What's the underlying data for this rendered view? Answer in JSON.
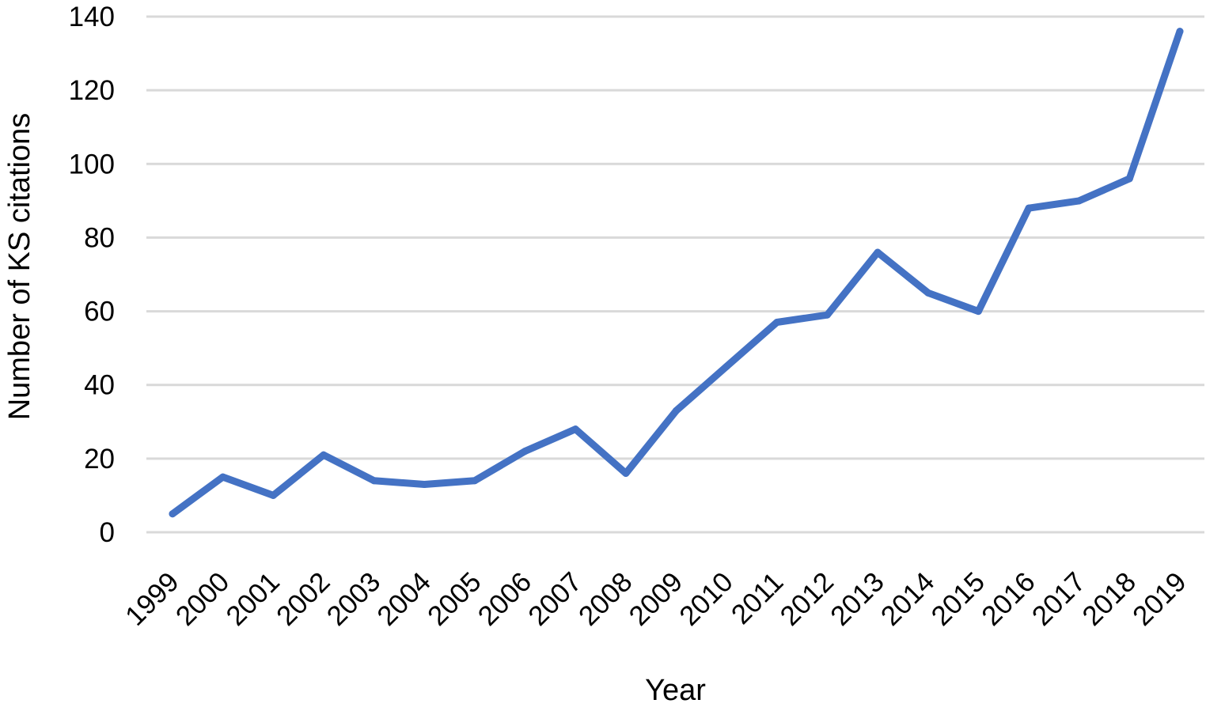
{
  "chart_data": {
    "type": "line",
    "title": "",
    "xlabel": "Year",
    "ylabel": "Number of KS citations",
    "categories": [
      "1999",
      "2000",
      "2001",
      "2002",
      "2003",
      "2004",
      "2005",
      "2006",
      "2007",
      "2008",
      "2009",
      "2010",
      "2011",
      "2012",
      "2013",
      "2014",
      "2015",
      "2016",
      "2017",
      "2018",
      "2019"
    ],
    "series": [
      {
        "values": [
          5,
          15,
          10,
          21,
          14,
          13,
          14,
          22,
          28,
          16,
          33,
          45,
          57,
          59,
          76,
          65,
          60,
          88,
          90,
          96,
          136
        ],
        "color": "#4472c4"
      }
    ],
    "ylim": [
      0,
      140
    ],
    "yticks": [
      0,
      20,
      40,
      60,
      80,
      100,
      120,
      140
    ],
    "grid": true,
    "legend": "none"
  }
}
